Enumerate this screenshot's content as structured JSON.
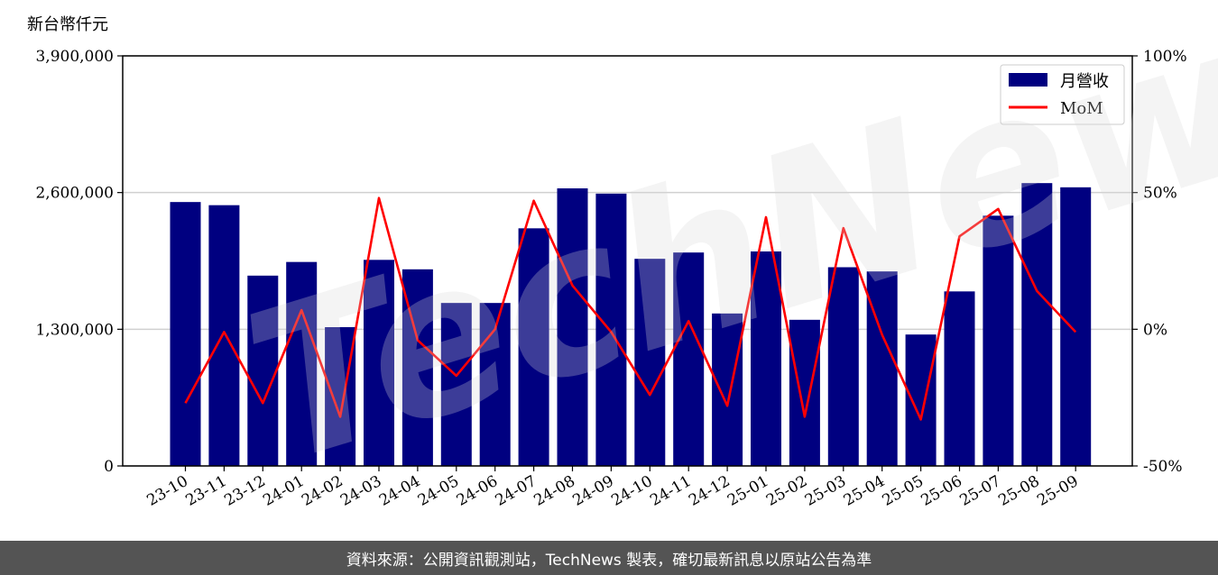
{
  "chart_data": {
    "type": "bar",
    "unit_label": "新台幣仟元",
    "categories": [
      "23-10",
      "23-11",
      "23-12",
      "24-01",
      "24-02",
      "24-03",
      "24-04",
      "24-05",
      "24-06",
      "24-07",
      "24-08",
      "24-09",
      "24-10",
      "24-11",
      "24-12",
      "25-01",
      "25-02",
      "25-03",
      "25-04",
      "25-05",
      "25-06",
      "25-07",
      "25-08",
      "25-09"
    ],
    "series": [
      {
        "name": "月營收",
        "type": "bar",
        "axis": "left",
        "color": "#000080",
        "values": [
          2510000,
          2480000,
          1810000,
          1940000,
          1320000,
          1960000,
          1870000,
          1550000,
          1550000,
          2260000,
          2640000,
          2590000,
          1970000,
          2030000,
          1450000,
          2040000,
          1390000,
          1890000,
          1850000,
          1250000,
          1660000,
          2380000,
          2690000,
          2650000
        ]
      },
      {
        "name": "MoM",
        "type": "line",
        "axis": "right",
        "color": "#ff0000",
        "values": [
          -27,
          -1,
          -27,
          7,
          -32,
          48,
          -4,
          -17,
          0,
          47,
          16,
          -1,
          -24,
          3,
          -28,
          41,
          -32,
          37,
          -2,
          -33,
          34,
          44,
          14,
          -1
        ]
      }
    ],
    "yleft": {
      "lim": [
        0,
        3900000
      ],
      "ticks": [
        "0",
        "1,300,000",
        "2,600,000",
        "3,900,000"
      ],
      "tick_values": [
        0,
        1300000,
        2600000,
        3900000
      ]
    },
    "yright": {
      "lim": [
        -50,
        100
      ],
      "ticks": [
        "-50%",
        "0%",
        "50%",
        "100%"
      ],
      "tick_values": [
        -50,
        0,
        50,
        100
      ]
    },
    "grid": "horizontal",
    "legend": "top-right",
    "watermark": "TechNews"
  },
  "footer": {
    "text": "資料來源：公開資訊觀測站，TechNews 製表，確切最新訊息以原站公告為準"
  }
}
